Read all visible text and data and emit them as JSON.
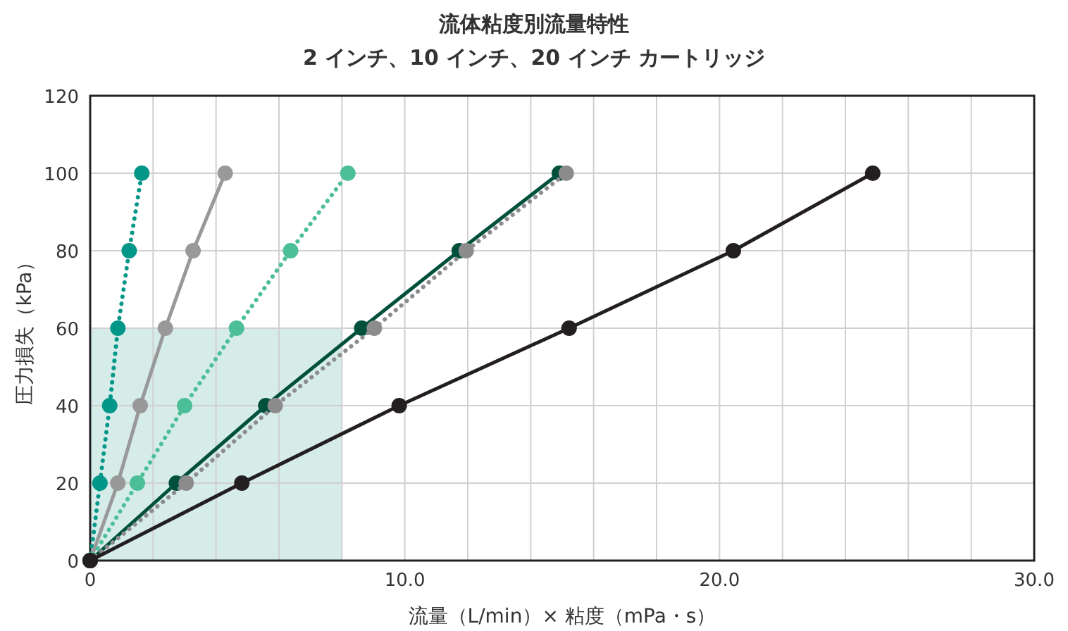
{
  "chart_data": {
    "type": "line",
    "title": "流体粘度別流量特性",
    "subtitle": "2 インチ、10 インチ、20 インチ カートリッジ",
    "xlabel": "流量（L/min）× 粘度（mPa・s）",
    "ylabel": "圧力損失（kPa）",
    "xlim": [
      0,
      30
    ],
    "ylim": [
      0,
      120
    ],
    "xticks": [
      0,
      {
        "value": 2,
        "label": null
      },
      {
        "value": 4,
        "label": null
      },
      {
        "value": 6,
        "label": null
      },
      {
        "value": 8,
        "label": null
      },
      {
        "value": 10,
        "label": "10.0"
      },
      {
        "value": 12,
        "label": null
      },
      {
        "value": 14,
        "label": null
      },
      {
        "value": 16,
        "label": null
      },
      {
        "value": 18,
        "label": null
      },
      {
        "value": 20,
        "label": "20.0"
      },
      {
        "value": 22,
        "label": null
      },
      {
        "value": 24,
        "label": null
      },
      {
        "value": 26,
        "label": null
      },
      {
        "value": 28,
        "label": null
      },
      {
        "value": 30,
        "label": "30.0"
      }
    ],
    "yticks": [
      0,
      20,
      40,
      60,
      80,
      100,
      120
    ],
    "grid": true,
    "marker": "circle",
    "line_style": "solid",
    "series": [
      {
        "type": "area",
        "marker": "none",
        "color": "#d6ece8",
        "x": [
          0,
          8
        ],
        "values": [
          60,
          60
        ]
      },
      {
        "color": "#009688",
        "line_style": "dotted",
        "x": [
          0,
          0.31,
          0.62,
          0.88,
          1.24,
          1.64
        ],
        "values": [
          0,
          20,
          40,
          60,
          80,
          100
        ]
      },
      {
        "color": "#999999",
        "x": [
          0,
          0.88,
          1.59,
          2.39,
          3.27,
          4.29
        ],
        "values": [
          0,
          20,
          40,
          60,
          80,
          100
        ]
      },
      {
        "color": "#4cbf99",
        "line_style": "dotted",
        "x": [
          0,
          1.5,
          3.0,
          4.65,
          6.37,
          8.19
        ],
        "values": [
          0,
          20,
          40,
          60,
          80,
          100
        ]
      },
      {
        "color": "#00503c",
        "x": [
          0,
          2.74,
          5.58,
          8.63,
          11.73,
          14.91
        ],
        "values": [
          0,
          20,
          40,
          60,
          80,
          100
        ]
      },
      {
        "color": "#8c8c8c",
        "line_style": "dotted",
        "x": [
          0,
          3.05,
          5.88,
          9.03,
          11.95,
          15.13
        ],
        "values": [
          0,
          20,
          40,
          60,
          80,
          100
        ]
      },
      {
        "color": "#231f20",
        "x": [
          0,
          4.82,
          9.82,
          15.22,
          20.44,
          24.87
        ],
        "values": [
          0,
          20,
          40,
          60,
          80,
          100
        ]
      }
    ]
  }
}
